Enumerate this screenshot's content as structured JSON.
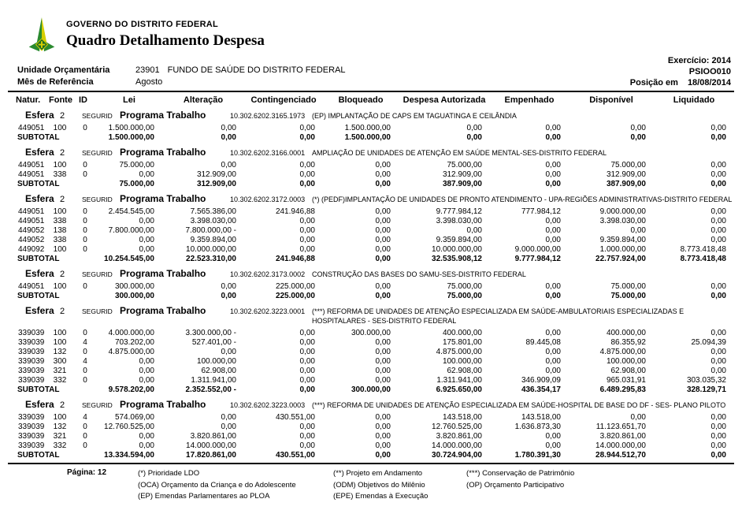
{
  "header": {
    "org": "GOVERNO DO DISTRITO FEDERAL",
    "title": "Quadro Detalhamento Despesa",
    "exercise": "Exercício: 2014",
    "report_code": "PSIOO010",
    "position_label": "Posição em",
    "position_date": "18/08/2014",
    "unit_label": "Unidade Orçamentária",
    "unit_code": "23901",
    "unit_name": "FUNDO DE SAÚDE DO DISTRITO FEDERAL",
    "month_label": "Mês de Referência",
    "month_value": "Agosto",
    "logo_colors": {
      "green": "#2a8a2f",
      "dark_green": "#1c6b24",
      "yellow": "#d6ce00"
    }
  },
  "table": {
    "columns": [
      "Natur.",
      "Fonte",
      "ID",
      "Lei",
      "Alteração",
      "Contingenciado",
      "Bloqueado",
      "Despesa Autorizada",
      "Empenhado",
      "Disponível",
      "Liquidado"
    ],
    "subtotal_label": "SUBTOTAL",
    "groups": [
      {
        "esfera_label": "Esfera",
        "esfera_value": "2",
        "regime": "SEGURID",
        "program_label": "Programa Trabalho",
        "program_code": "10.302.6202.3165.1973",
        "description": "(EP)  IMPLANTAÇÃO DE CAPS EM TAGUATINGA E CEILÂNDIA",
        "rows": [
          {
            "natur": "449051",
            "fonte": "100",
            "id": "0",
            "values": [
              "1.500.000,00",
              "0,00",
              "0,00",
              "1.500.000,00",
              "0,00",
              "0,00",
              "0,00",
              "0,00"
            ]
          }
        ],
        "subtotal": [
          "1.500.000,00",
          "0,00",
          "0,00",
          "1.500.000,00",
          "0,00",
          "0,00",
          "0,00",
          "0,00"
        ]
      },
      {
        "esfera_label": "Esfera",
        "esfera_value": "2",
        "regime": "SEGURID",
        "program_label": "Programa Trabalho",
        "program_code": "10.302.6202.3166.0001",
        "description": "AMPLIAÇÃO DE UNIDADES DE ATENÇÃO EM SAÚDE MENTAL-SES-DISTRITO FEDERAL",
        "rows": [
          {
            "natur": "449051",
            "fonte": "100",
            "id": "0",
            "values": [
              "75.000,00",
              "0,00",
              "0,00",
              "0,00",
              "75.000,00",
              "0,00",
              "75.000,00",
              "0,00"
            ]
          },
          {
            "natur": "449051",
            "fonte": "338",
            "id": "0",
            "values": [
              "0,00",
              "312.909,00",
              "0,00",
              "0,00",
              "312.909,00",
              "0,00",
              "312.909,00",
              "0,00"
            ]
          }
        ],
        "subtotal": [
          "75.000,00",
          "312.909,00",
          "0,00",
          "0,00",
          "387.909,00",
          "0,00",
          "387.909,00",
          "0,00"
        ]
      },
      {
        "esfera_label": "Esfera",
        "esfera_value": "2",
        "regime": "SEGURID",
        "program_label": "Programa Trabalho",
        "program_code": "10.302.6202.3172.0003",
        "description": "(*)  (PEDF)IMPLANTAÇÃO DE UNIDADES DE PRONTO ATENDIMENTO - UPA-REGIÕES ADMINISTRATIVAS-DISTRITO FEDERAL",
        "rows": [
          {
            "natur": "449051",
            "fonte": "100",
            "id": "0",
            "values": [
              "2.454.545,00",
              "7.565.386,00",
              "241.946,88",
              "0,00",
              "9.777.984,12",
              "777.984,12",
              "9.000.000,00",
              "0,00"
            ]
          },
          {
            "natur": "449051",
            "fonte": "338",
            "id": "0",
            "values": [
              "0,00",
              "3.398.030,00",
              "0,00",
              "0,00",
              "3.398.030,00",
              "0,00",
              "3.398.030,00",
              "0,00"
            ]
          },
          {
            "natur": "449052",
            "fonte": "138",
            "id": "0",
            "values": [
              "7.800.000,00",
              "7.800.000,00 -",
              "0,00",
              "0,00",
              "0,00",
              "0,00",
              "0,00",
              "0,00"
            ]
          },
          {
            "natur": "449052",
            "fonte": "338",
            "id": "0",
            "values": [
              "0,00",
              "9.359.894,00",
              "0,00",
              "0,00",
              "9.359.894,00",
              "0,00",
              "9.359.894,00",
              "0,00"
            ]
          },
          {
            "natur": "449092",
            "fonte": "100",
            "id": "0",
            "values": [
              "0,00",
              "10.000.000,00",
              "0,00",
              "0,00",
              "10.000.000,00",
              "9.000.000,00",
              "1.000.000,00",
              "8.773.418,48"
            ]
          }
        ],
        "subtotal": [
          "10.254.545,00",
          "22.523.310,00",
          "241.946,88",
          "0,00",
          "32.535.908,12",
          "9.777.984,12",
          "22.757.924,00",
          "8.773.418,48"
        ]
      },
      {
        "esfera_label": "Esfera",
        "esfera_value": "2",
        "regime": "SEGURID",
        "program_label": "Programa Trabalho",
        "program_code": "10.302.6202.3173.0002",
        "description": "CONSTRUÇÃO DAS BASES DO SAMU-SES-DISTRITO FEDERAL",
        "rows": [
          {
            "natur": "449051",
            "fonte": "100",
            "id": "0",
            "values": [
              "300.000,00",
              "0,00",
              "225.000,00",
              "0,00",
              "75.000,00",
              "0,00",
              "75.000,00",
              "0,00"
            ]
          }
        ],
        "subtotal": [
          "300.000,00",
          "0,00",
          "225.000,00",
          "0,00",
          "75.000,00",
          "0,00",
          "75.000,00",
          "0,00"
        ]
      },
      {
        "esfera_label": "Esfera",
        "esfera_value": "2",
        "regime": "SEGURID",
        "program_label": "Programa Trabalho",
        "program_code": "10.302.6202.3223.0001",
        "description": "(***) REFORMA DE UNIDADES DE ATENÇÃO ESPECIALIZADA EM SAÚDE-AMBULATORIAIS ESPECIALIZADAS E HOSPITALARES - SES-DISTRITO FEDERAL",
        "rows": [
          {
            "natur": "339039",
            "fonte": "100",
            "id": "0",
            "values": [
              "4.000.000,00",
              "3.300.000,00 -",
              "0,00",
              "300.000,00",
              "400.000,00",
              "0,00",
              "400.000,00",
              "0,00"
            ]
          },
          {
            "natur": "339039",
            "fonte": "100",
            "id": "4",
            "values": [
              "703.202,00",
              "527.401,00 -",
              "0,00",
              "0,00",
              "175.801,00",
              "89.445,08",
              "86.355,92",
              "25.094,39"
            ]
          },
          {
            "natur": "339039",
            "fonte": "132",
            "id": "0",
            "values": [
              "4.875.000,00",
              "0,00",
              "0,00",
              "0,00",
              "4.875.000,00",
              "0,00",
              "4.875.000,00",
              "0,00"
            ]
          },
          {
            "natur": "339039",
            "fonte": "300",
            "id": "4",
            "values": [
              "0,00",
              "100.000,00",
              "0,00",
              "0,00",
              "100.000,00",
              "0,00",
              "100.000,00",
              "0,00"
            ]
          },
          {
            "natur": "339039",
            "fonte": "321",
            "id": "0",
            "values": [
              "0,00",
              "62.908,00",
              "0,00",
              "0,00",
              "62.908,00",
              "0,00",
              "62.908,00",
              "0,00"
            ]
          },
          {
            "natur": "339039",
            "fonte": "332",
            "id": "0",
            "values": [
              "0,00",
              "1.311.941,00",
              "0,00",
              "0,00",
              "1.311.941,00",
              "346.909,09",
              "965.031,91",
              "303.035,32"
            ]
          }
        ],
        "subtotal": [
          "9.578.202,00",
          "2.352.552,00 -",
          "0,00",
          "300.000,00",
          "6.925.650,00",
          "436.354,17",
          "6.489.295,83",
          "328.129,71"
        ]
      },
      {
        "esfera_label": "Esfera",
        "esfera_value": "2",
        "regime": "SEGURID",
        "program_label": "Programa Trabalho",
        "program_code": "10.302.6202.3223.0003",
        "description": "(***) REFORMA DE UNIDADES DE ATENÇÃO ESPECIALIZADA EM SAÚDE-HOSPITAL DE BASE DO DF - SES- PLANO PILOTO",
        "rows": [
          {
            "natur": "339039",
            "fonte": "100",
            "id": "4",
            "values": [
              "574.069,00",
              "0,00",
              "430.551,00",
              "0,00",
              "143.518,00",
              "143.518,00",
              "0,00",
              "0,00"
            ]
          },
          {
            "natur": "339039",
            "fonte": "132",
            "id": "0",
            "values": [
              "12.760.525,00",
              "0,00",
              "0,00",
              "0,00",
              "12.760.525,00",
              "1.636.873,30",
              "11.123.651,70",
              "0,00"
            ]
          },
          {
            "natur": "339039",
            "fonte": "321",
            "id": "0",
            "values": [
              "0,00",
              "3.820.861,00",
              "0,00",
              "0,00",
              "3.820.861,00",
              "0,00",
              "3.820.861,00",
              "0,00"
            ]
          },
          {
            "natur": "339039",
            "fonte": "332",
            "id": "0",
            "values": [
              "0,00",
              "14.000.000,00",
              "0,00",
              "0,00",
              "14.000.000,00",
              "0,00",
              "14.000.000,00",
              "0,00"
            ]
          }
        ],
        "subtotal": [
          "13.334.594,00",
          "17.820.861,00",
          "430.551,00",
          "0,00",
          "30.724.904,00",
          "1.780.391,30",
          "28.944.512,70",
          "0,00"
        ]
      }
    ]
  },
  "footer": {
    "page_label": "Página:",
    "page_value": "12",
    "legend1": [
      "(*)  Prioridade LDO",
      "(OCA)  Orçamento da Criança e do Adolescente",
      "(EP)  Emendas Parlamentares ao PLOA"
    ],
    "legend2": [
      "(**)  Projeto em Andamento",
      "(ODM) Objetivos do Milênio",
      "(EPE) Emendas à Execução"
    ],
    "legend3": [
      "(***)  Conservação de Patrimônio",
      "(OP) Orçamento Participativo"
    ]
  }
}
